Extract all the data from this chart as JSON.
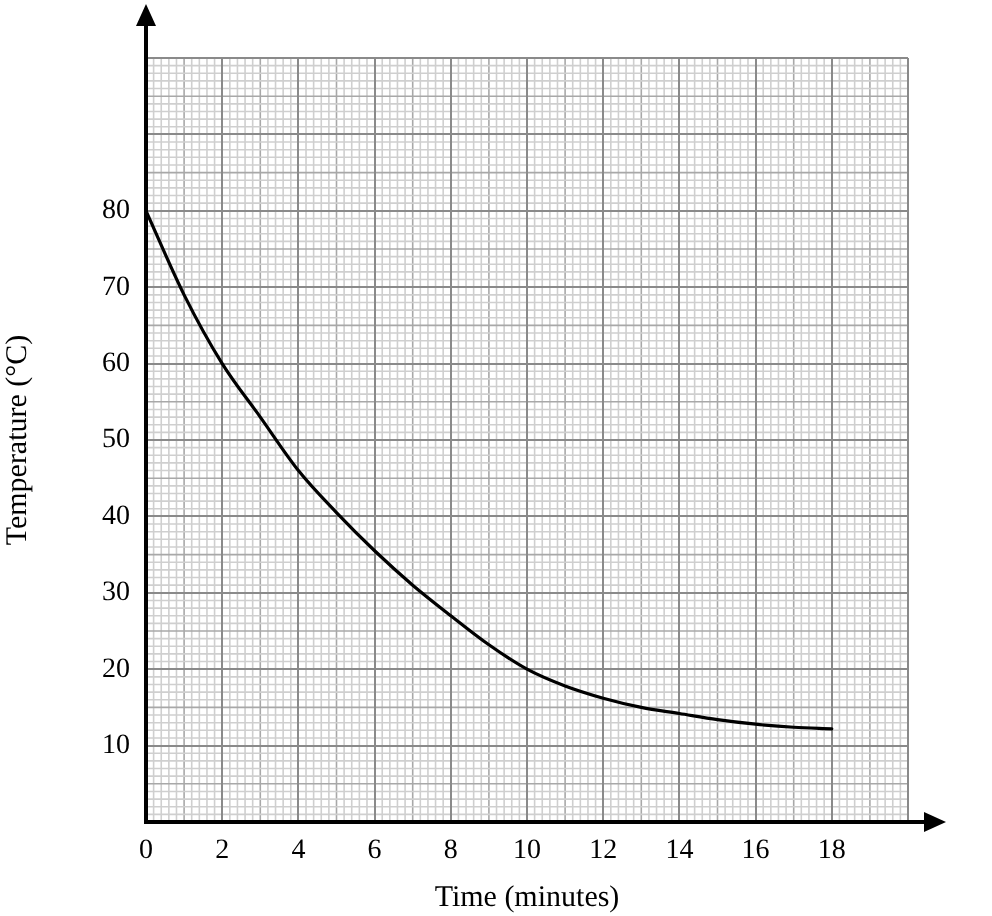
{
  "chart_data": {
    "type": "line",
    "xlabel": "Time (minutes)",
    "ylabel": "Temperature (°C)",
    "x": [
      0,
      1,
      2,
      3,
      4,
      5,
      6,
      7,
      8,
      9,
      10,
      11,
      12,
      13,
      14,
      15,
      16,
      17,
      18
    ],
    "series": [
      {
        "color": "#000000",
        "values": [
          80,
          69,
          60,
          53,
          46,
          40.5,
          35.5,
          31,
          27,
          23.2,
          20,
          17.8,
          16.2,
          15,
          14.2,
          13.4,
          12.8,
          12.4,
          12.2
        ]
      }
    ],
    "xlim": [
      0,
      20
    ],
    "ylim": [
      0,
      100
    ],
    "xticks": [
      0,
      2,
      4,
      6,
      8,
      10,
      12,
      14,
      16,
      18,
      {
        "value": 20,
        "label": null
      }
    ],
    "yticks": [
      {
        "value": 0,
        "label": null
      },
      10,
      20,
      30,
      40,
      50,
      60,
      70,
      80,
      {
        "value": 90,
        "label": null
      },
      {
        "value": 100,
        "label": null
      }
    ],
    "grid": true,
    "marker": "none",
    "line_style": "solid"
  }
}
